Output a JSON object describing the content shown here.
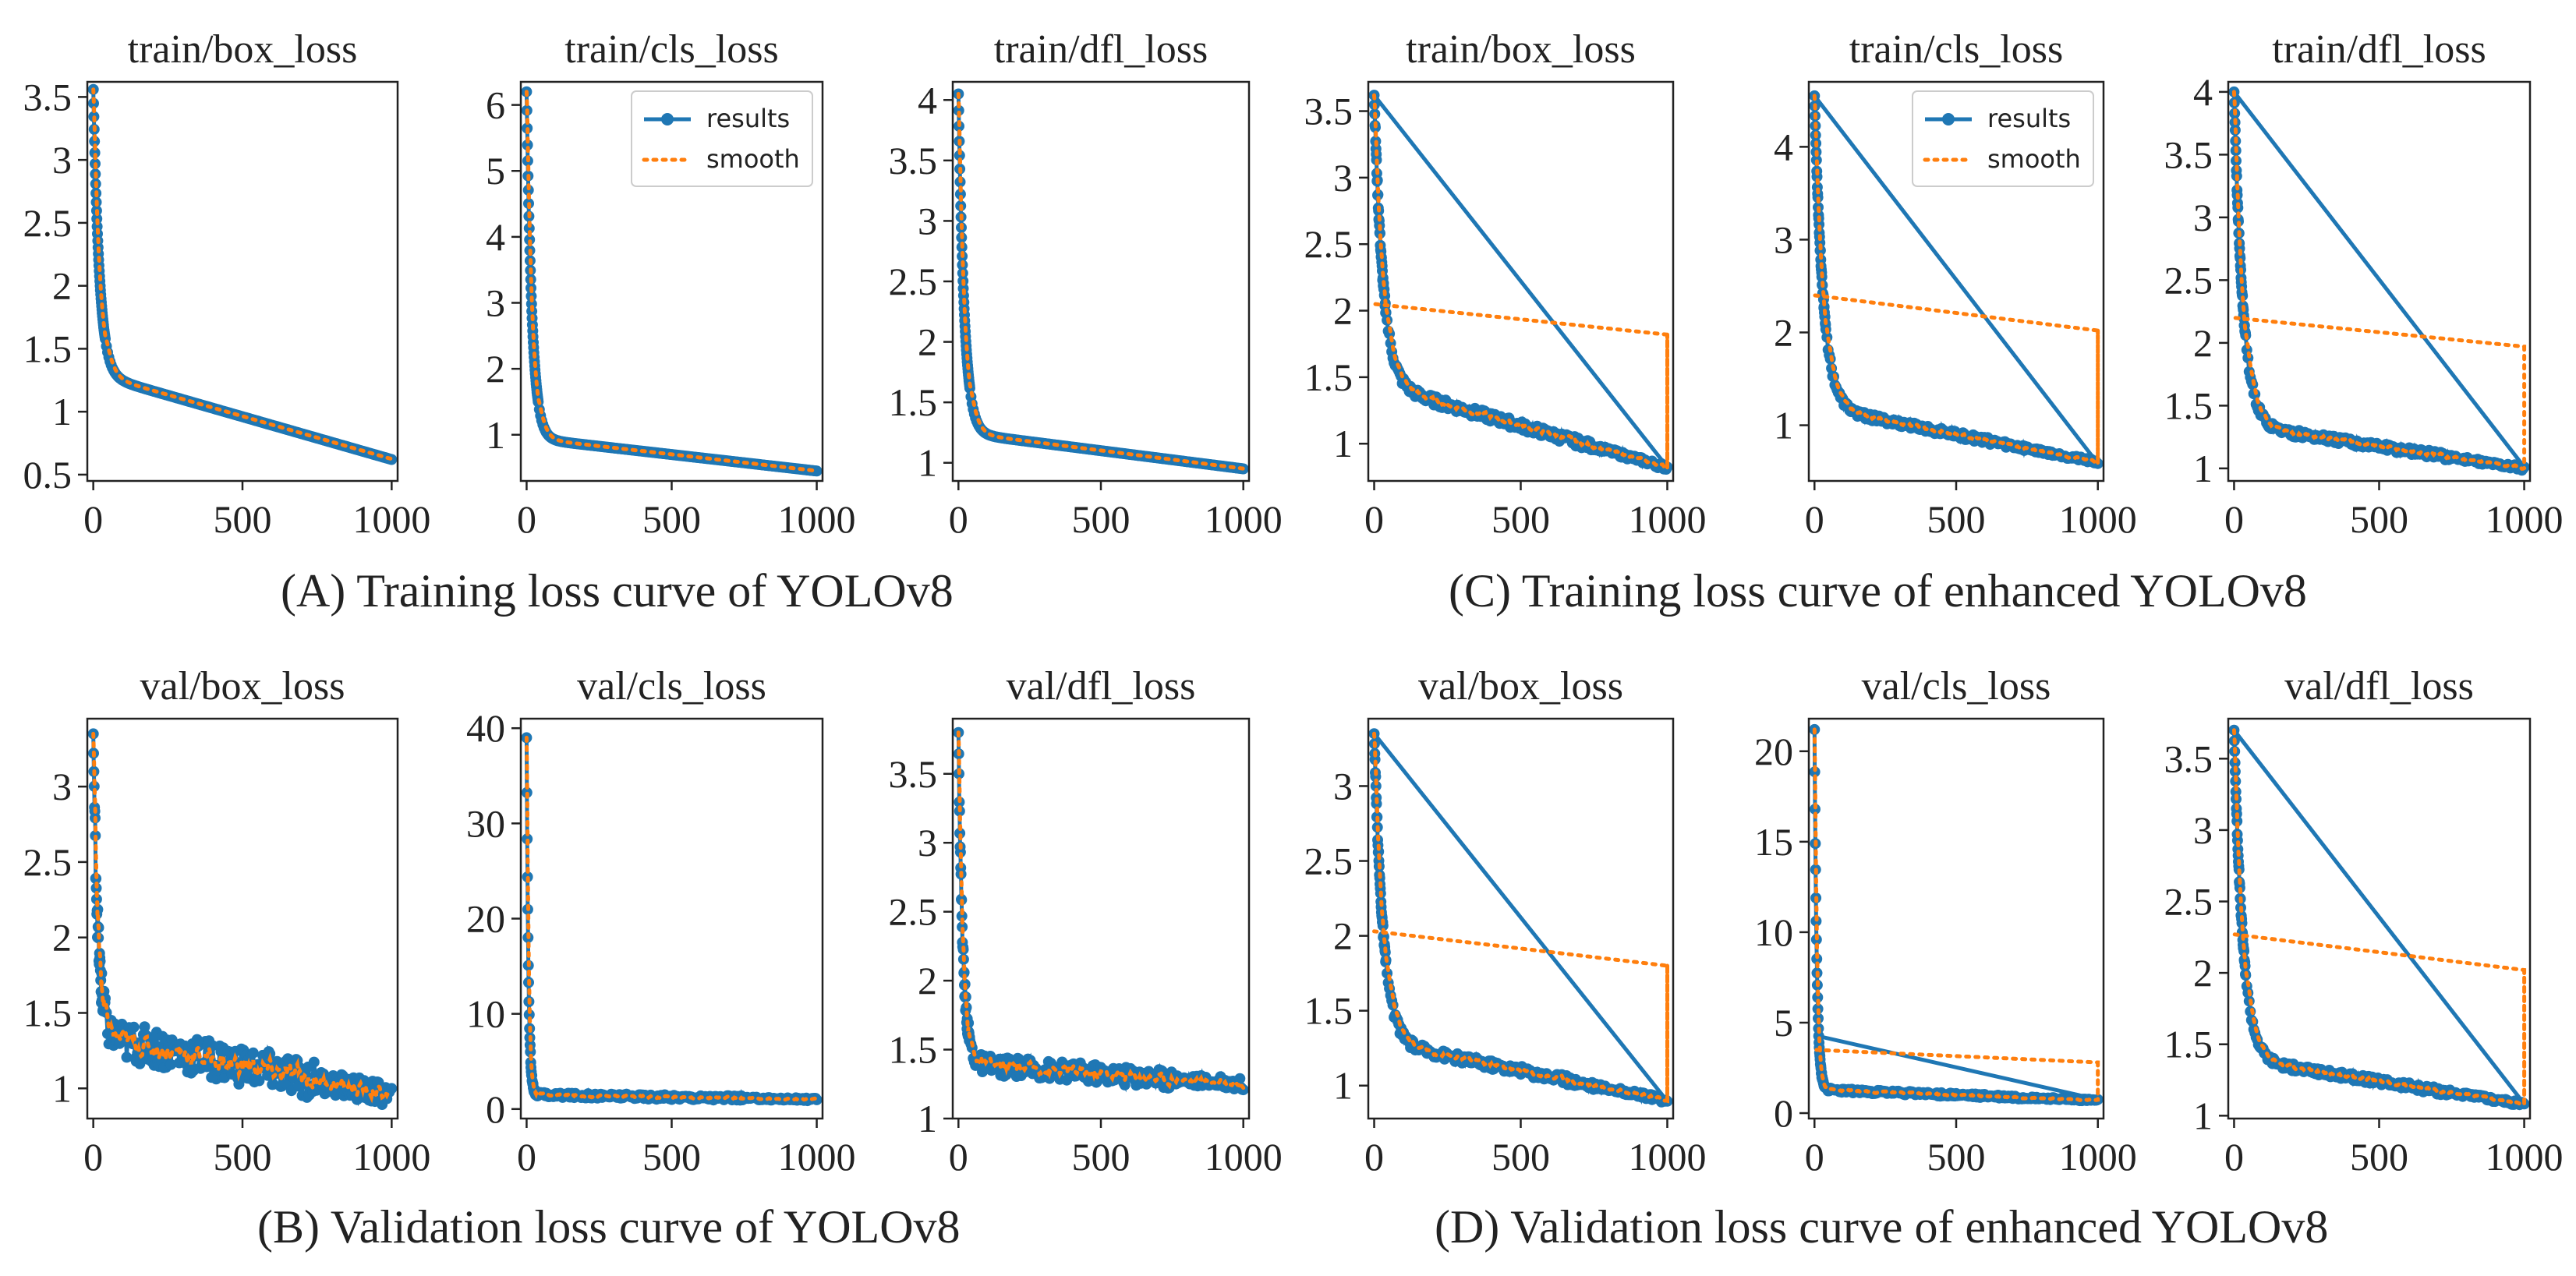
{
  "captions": {
    "a": "(A) Training loss curve of YOLOv8",
    "b": "(B) Validation loss curve of YOLOv8",
    "c": "(C) Training loss curve of enhanced YOLOv8",
    "d": "(D) Validation loss curve of enhanced YOLOv8"
  },
  "colors": {
    "results": "#1f77b4",
    "smooth": "#ff7f0e",
    "axes": "#222222"
  },
  "legend": {
    "results": "results",
    "smooth": "smooth"
  },
  "chart_data": [
    {
      "id": "a1",
      "panel": "A",
      "type": "line",
      "title": "train/box_loss",
      "xlim": [
        -20,
        1020
      ],
      "ylim": [
        0.45,
        3.62
      ],
      "xticks": [
        0,
        500,
        1000
      ],
      "yticks": [
        0.5,
        1.0,
        1.5,
        2.0,
        2.5,
        3.0,
        3.5
      ],
      "curve": {
        "start": 3.56,
        "plateau": 1.3,
        "end": 0.62,
        "k": 20
      },
      "noise": 0.0,
      "jump": false,
      "legend": false
    },
    {
      "id": "a2",
      "panel": "A",
      "type": "line",
      "title": "train/cls_loss",
      "xlim": [
        -20,
        1020
      ],
      "ylim": [
        0.3,
        6.35
      ],
      "xticks": [
        0,
        500,
        1000
      ],
      "yticks": [
        1,
        2,
        3,
        4,
        5,
        6
      ],
      "curve": {
        "start": 6.2,
        "plateau": 0.95,
        "end": 0.45,
        "k": 18
      },
      "noise": 0.0,
      "jump": false,
      "legend": true
    },
    {
      "id": "a3",
      "panel": "A",
      "type": "line",
      "title": "train/dfl_loss",
      "xlim": [
        -20,
        1020
      ],
      "ylim": [
        0.85,
        4.15
      ],
      "xticks": [
        0,
        500,
        1000
      ],
      "yticks": [
        1.0,
        1.5,
        2.0,
        2.5,
        3.0,
        3.5,
        4.0
      ],
      "curve": {
        "start": 4.05,
        "plateau": 1.25,
        "end": 0.95,
        "k": 20
      },
      "noise": 0.0,
      "jump": false,
      "legend": false
    },
    {
      "id": "b1",
      "panel": "B",
      "type": "line",
      "title": "val/box_loss",
      "xlim": [
        -20,
        1020
      ],
      "ylim": [
        0.8,
        3.45
      ],
      "xticks": [
        0,
        500,
        1000
      ],
      "yticks": [
        1.0,
        1.5,
        2.0,
        2.5,
        3.0
      ],
      "curve": {
        "start": 3.35,
        "plateau": 1.35,
        "end": 0.95,
        "k": 15
      },
      "noise": 0.13,
      "jump": false,
      "legend": false
    },
    {
      "id": "b2",
      "panel": "B",
      "type": "line",
      "title": "val/cls_loss",
      "xlim": [
        -20,
        1020
      ],
      "ylim": [
        -1,
        41
      ],
      "xticks": [
        0,
        500,
        1000
      ],
      "yticks": [
        0,
        10,
        20,
        30,
        40
      ],
      "curve": {
        "start": 39.0,
        "plateau": 1.5,
        "end": 1.0,
        "k": 6
      },
      "noise": 0.25,
      "jump": false,
      "legend": false
    },
    {
      "id": "b3",
      "panel": "B",
      "type": "line",
      "title": "val/dfl_loss",
      "xlim": [
        -20,
        1020
      ],
      "ylim": [
        1.0,
        3.9
      ],
      "xticks": [
        0,
        500,
        1000
      ],
      "yticks": [
        1.0,
        1.5,
        2.0,
        2.5,
        3.0,
        3.5
      ],
      "curve": {
        "start": 3.8,
        "plateau": 1.4,
        "end": 1.25,
        "k": 15
      },
      "noise": 0.07,
      "jump": false,
      "legend": false
    },
    {
      "id": "c1",
      "panel": "C",
      "type": "line",
      "title": "train/box_loss",
      "xlim": [
        -20,
        1020
      ],
      "ylim": [
        0.72,
        3.72
      ],
      "xticks": [
        0,
        500,
        1000
      ],
      "yticks": [
        1.0,
        1.5,
        2.0,
        2.5,
        3.0,
        3.5
      ],
      "curve": {
        "start": 3.62,
        "plateau": 1.45,
        "end": 0.82,
        "k": 30
      },
      "noise": 0.035,
      "jump": true,
      "smooth_jump": [
        2.05,
        1.82
      ],
      "legend": false
    },
    {
      "id": "c2",
      "panel": "C",
      "type": "line",
      "title": "train/cls_loss",
      "xlim": [
        -20,
        1020
      ],
      "ylim": [
        0.4,
        4.7
      ],
      "xticks": [
        0,
        500,
        1000
      ],
      "yticks": [
        1,
        2,
        3,
        4
      ],
      "curve": {
        "start": 4.55,
        "plateau": 1.2,
        "end": 0.6,
        "k": 30
      },
      "noise": 0.035,
      "jump": true,
      "smooth_jump": [
        2.4,
        2.02
      ],
      "legend": true
    },
    {
      "id": "c3",
      "panel": "C",
      "type": "line",
      "title": "train/dfl_loss",
      "xlim": [
        -20,
        1020
      ],
      "ylim": [
        0.9,
        4.08
      ],
      "xticks": [
        0,
        500,
        1000
      ],
      "yticks": [
        1.0,
        1.5,
        2.0,
        2.5,
        3.0,
        3.5,
        4.0
      ],
      "curve": {
        "start": 4.0,
        "plateau": 1.35,
        "end": 1.0,
        "k": 30
      },
      "noise": 0.03,
      "jump": true,
      "smooth_jump": [
        2.2,
        1.97
      ],
      "legend": false
    },
    {
      "id": "d1",
      "panel": "D",
      "type": "line",
      "title": "val/box_loss",
      "xlim": [
        -20,
        1020
      ],
      "ylim": [
        0.78,
        3.45
      ],
      "xticks": [
        0,
        500,
        1000
      ],
      "yticks": [
        1.0,
        1.5,
        2.0,
        2.5,
        3.0
      ],
      "curve": {
        "start": 3.35,
        "plateau": 1.3,
        "end": 0.9,
        "k": 30
      },
      "noise": 0.03,
      "jump": true,
      "smooth_jump": [
        2.03,
        1.8
      ],
      "legend": false
    },
    {
      "id": "d2",
      "panel": "D",
      "type": "line",
      "title": "val/cls_loss",
      "xlim": [
        -20,
        1020
      ],
      "ylim": [
        -0.3,
        21.8
      ],
      "xticks": [
        0,
        500,
        1000
      ],
      "yticks": [
        0,
        5,
        10,
        15,
        20
      ],
      "curve": {
        "start": 21.2,
        "plateau": 1.3,
        "end": 0.7,
        "k": 8
      },
      "noise": 0.1,
      "jump": true,
      "smooth_jump": [
        3.5,
        2.8
      ],
      "start_jump": 4.3,
      "legend": false
    },
    {
      "id": "d3",
      "panel": "D",
      "type": "line",
      "title": "val/dfl_loss",
      "xlim": [
        -20,
        1020
      ],
      "ylim": [
        0.98,
        3.78
      ],
      "xticks": [
        0,
        500,
        1000
      ],
      "yticks": [
        1.0,
        1.5,
        2.0,
        2.5,
        3.0,
        3.5
      ],
      "curve": {
        "start": 3.7,
        "plateau": 1.4,
        "end": 1.08,
        "k": 30
      },
      "noise": 0.025,
      "jump": true,
      "smooth_jump": [
        2.27,
        2.02
      ],
      "legend": false
    }
  ]
}
